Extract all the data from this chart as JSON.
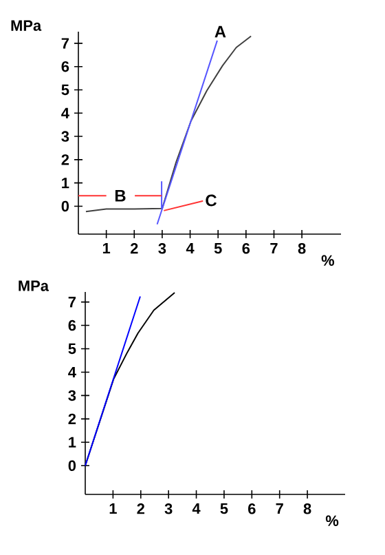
{
  "chart_data": [
    {
      "type": "line",
      "xlabel": "%",
      "ylabel": "MPa",
      "xlim": [
        0,
        9.4
      ],
      "ylim": [
        -1.2,
        7.5
      ],
      "xticks": [
        1,
        2,
        3,
        4,
        5,
        6,
        7,
        8
      ],
      "yticks": [
        0,
        1,
        2,
        3,
        4,
        5,
        6,
        7
      ],
      "line_style": "solid",
      "marker": "none",
      "series": [
        {
          "color": "#404040",
          "x": [
            0.27,
            1,
            2,
            3,
            3.5,
            4.03,
            4.6,
            5.16,
            5.65,
            6.18
          ],
          "values": [
            -0.23,
            -0.12,
            -0.12,
            -0.1,
            1.9,
            3.66,
            4.97,
            6.04,
            6.82,
            7.31
          ]
        },
        {
          "color": "#5555ff",
          "x": [
            2.82,
            4.97
          ],
          "values": [
            -0.78,
            7.12
          ]
        },
        {
          "color": "#5555ff",
          "x": [
            2.98,
            2.98
          ],
          "values": [
            -0.1,
            1.07
          ]
        },
        {
          "color": "#ff3333",
          "x": [
            0,
            1,
            1.5,
            2.02,
            2.98
          ],
          "values": [
            0.45,
            0.45,
            null,
            0.45,
            0.45
          ]
        },
        {
          "color": "#ff3333",
          "x": [
            3.06,
            4.47
          ],
          "values": [
            -0.19,
            0.23
          ]
        }
      ],
      "annotations": [
        {
          "text": "A",
          "x": 5.08,
          "y": 7.5
        },
        {
          "text": "B",
          "x": 1.5,
          "y": 0.45
        },
        {
          "text": "C",
          "x": 4.75,
          "y": 0.25
        }
      ]
    },
    {
      "type": "line",
      "xlabel": "%",
      "ylabel": "MPa",
      "xlim": [
        0,
        9.36
      ],
      "ylim": [
        -1.23,
        7.43
      ],
      "xticks": [
        1,
        2,
        3,
        4,
        5,
        6,
        7,
        8
      ],
      "yticks": [
        0,
        1,
        2,
        3,
        4,
        5,
        6,
        7
      ],
      "line_style": "solid",
      "marker": "none",
      "series": [
        {
          "color": "#000000",
          "x": [
            0,
            1.02,
            1.49,
            1.9,
            2.47,
            3.22
          ],
          "values": [
            0,
            3.7,
            4.79,
            5.67,
            6.65,
            7.4
          ]
        },
        {
          "color": "#0000ff",
          "x": [
            0,
            1.98
          ],
          "values": [
            0,
            7.24
          ]
        }
      ]
    }
  ]
}
